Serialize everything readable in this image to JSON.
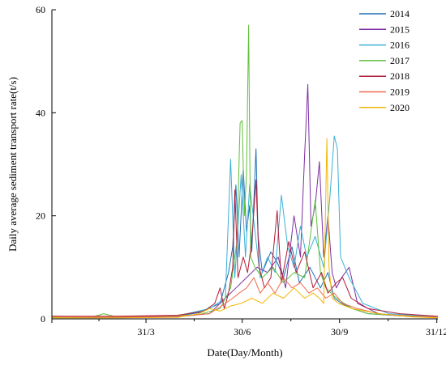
{
  "chart_data": {
    "type": "line",
    "xlabel": "Date(Day/Month)",
    "ylabel": "Daily average sediment transport rate(t/s)",
    "ylim": [
      0,
      60
    ],
    "xlim": [
      1,
      366
    ],
    "x_unit": "day of year",
    "y_ticks": [
      {
        "value": 0,
        "label": "0"
      },
      {
        "value": 20,
        "label": "20"
      },
      {
        "value": 40,
        "label": "40"
      },
      {
        "value": 60,
        "label": "60"
      }
    ],
    "x_ticks": [
      {
        "value": 90,
        "label": "31/3"
      },
      {
        "value": 181,
        "label": "30/6"
      },
      {
        "value": 273,
        "label": "30/9"
      },
      {
        "value": 365,
        "label": "31/12"
      }
    ],
    "legend_position": "top-right",
    "grid": false,
    "series": [
      {
        "name": "2014",
        "color": "#1f6fb5",
        "points": [
          [
            1,
            0.4
          ],
          [
            60,
            0.3
          ],
          [
            120,
            0.6
          ],
          [
            140,
            1.2
          ],
          [
            160,
            3
          ],
          [
            168,
            9
          ],
          [
            172,
            14
          ],
          [
            175,
            26
          ],
          [
            178,
            12
          ],
          [
            182,
            29
          ],
          [
            185,
            17
          ],
          [
            188,
            22
          ],
          [
            190,
            13
          ],
          [
            194,
            33
          ],
          [
            196,
            16
          ],
          [
            200,
            9
          ],
          [
            208,
            13
          ],
          [
            214,
            11
          ],
          [
            220,
            8
          ],
          [
            228,
            14
          ],
          [
            235,
            7
          ],
          [
            245,
            10
          ],
          [
            255,
            6
          ],
          [
            262,
            9
          ],
          [
            268,
            4
          ],
          [
            275,
            3
          ],
          [
            285,
            2
          ],
          [
            300,
            1
          ],
          [
            330,
            0.6
          ],
          [
            366,
            0.4
          ]
        ]
      },
      {
        "name": "2015",
        "color": "#7e2fa3",
        "points": [
          [
            1,
            0.3
          ],
          [
            60,
            0.3
          ],
          [
            120,
            0.4
          ],
          [
            150,
            1
          ],
          [
            165,
            4
          ],
          [
            175,
            6
          ],
          [
            185,
            8
          ],
          [
            195,
            10
          ],
          [
            205,
            9
          ],
          [
            215,
            12
          ],
          [
            222,
            6
          ],
          [
            230,
            20
          ],
          [
            236,
            12
          ],
          [
            240,
            32
          ],
          [
            243,
            45.5
          ],
          [
            246,
            18
          ],
          [
            250,
            22
          ],
          [
            254,
            30.5
          ],
          [
            258,
            12
          ],
          [
            262,
            20
          ],
          [
            266,
            9
          ],
          [
            270,
            6
          ],
          [
            275,
            8
          ],
          [
            282,
            10
          ],
          [
            290,
            3
          ],
          [
            310,
            1
          ],
          [
            330,
            0.6
          ],
          [
            366,
            0.4
          ]
        ]
      },
      {
        "name": "2016",
        "color": "#3ab0d6",
        "points": [
          [
            1,
            0.5
          ],
          [
            60,
            0.4
          ],
          [
            120,
            0.6
          ],
          [
            150,
            2
          ],
          [
            165,
            4
          ],
          [
            170,
            31
          ],
          [
            174,
            8
          ],
          [
            180,
            28
          ],
          [
            184,
            12
          ],
          [
            188,
            26
          ],
          [
            193,
            17
          ],
          [
            198,
            8
          ],
          [
            205,
            12
          ],
          [
            212,
            9
          ],
          [
            218,
            24
          ],
          [
            224,
            14
          ],
          [
            230,
            10
          ],
          [
            236,
            18
          ],
          [
            242,
            12
          ],
          [
            250,
            16
          ],
          [
            258,
            10
          ],
          [
            264,
            24
          ],
          [
            268,
            35.5
          ],
          [
            271,
            33
          ],
          [
            274,
            12
          ],
          [
            282,
            8
          ],
          [
            295,
            3
          ],
          [
            320,
            1
          ],
          [
            366,
            0.4
          ]
        ]
      },
      {
        "name": "2017",
        "color": "#5fbf3a",
        "points": [
          [
            1,
            0.3
          ],
          [
            40,
            0.4
          ],
          [
            50,
            1
          ],
          [
            60,
            0.5
          ],
          [
            100,
            0.5
          ],
          [
            140,
            0.8
          ],
          [
            160,
            2
          ],
          [
            170,
            6
          ],
          [
            176,
            15
          ],
          [
            179,
            38
          ],
          [
            181,
            38.5
          ],
          [
            183,
            20
          ],
          [
            185,
            28
          ],
          [
            187,
            57
          ],
          [
            189,
            12
          ],
          [
            193,
            10
          ],
          [
            200,
            8
          ],
          [
            210,
            10
          ],
          [
            220,
            7
          ],
          [
            230,
            9
          ],
          [
            240,
            8
          ],
          [
            250,
            23
          ],
          [
            255,
            9
          ],
          [
            260,
            6
          ],
          [
            270,
            4
          ],
          [
            285,
            2
          ],
          [
            300,
            1
          ],
          [
            366,
            0.3
          ]
        ]
      },
      {
        "name": "2018",
        "color": "#b01c38",
        "points": [
          [
            1,
            0.5
          ],
          [
            60,
            0.5
          ],
          [
            120,
            0.7
          ],
          [
            145,
            1.5
          ],
          [
            155,
            3
          ],
          [
            160,
            6
          ],
          [
            164,
            2
          ],
          [
            168,
            5
          ],
          [
            172,
            10
          ],
          [
            174,
            25
          ],
          [
            177,
            8
          ],
          [
            182,
            12
          ],
          [
            186,
            9
          ],
          [
            190,
            15
          ],
          [
            194,
            27
          ],
          [
            197,
            10
          ],
          [
            202,
            6
          ],
          [
            208,
            8
          ],
          [
            214,
            21
          ],
          [
            218,
            7
          ],
          [
            225,
            15
          ],
          [
            232,
            9
          ],
          [
            240,
            13
          ],
          [
            248,
            6
          ],
          [
            256,
            9
          ],
          [
            262,
            5
          ],
          [
            270,
            7
          ],
          [
            276,
            8
          ],
          [
            284,
            4
          ],
          [
            300,
            2
          ],
          [
            330,
            1
          ],
          [
            366,
            0.5
          ]
        ]
      },
      {
        "name": "2019",
        "color": "#f26c4f",
        "points": [
          [
            1,
            0.4
          ],
          [
            60,
            0.4
          ],
          [
            120,
            0.5
          ],
          [
            150,
            1
          ],
          [
            165,
            3
          ],
          [
            172,
            4
          ],
          [
            178,
            5
          ],
          [
            185,
            6
          ],
          [
            192,
            8
          ],
          [
            198,
            5
          ],
          [
            205,
            7
          ],
          [
            212,
            5
          ],
          [
            220,
            8
          ],
          [
            228,
            6
          ],
          [
            236,
            7
          ],
          [
            244,
            5
          ],
          [
            252,
            6
          ],
          [
            260,
            4
          ],
          [
            268,
            5
          ],
          [
            276,
            3
          ],
          [
            290,
            2
          ],
          [
            310,
            1
          ],
          [
            340,
            0.5
          ],
          [
            366,
            0.4
          ]
        ]
      },
      {
        "name": "2020",
        "color": "#f2b705",
        "points": [
          [
            1,
            0.2
          ],
          [
            60,
            0.2
          ],
          [
            120,
            0.3
          ],
          [
            140,
            1
          ],
          [
            150,
            2
          ],
          [
            160,
            1.5
          ],
          [
            170,
            2.5
          ],
          [
            180,
            3
          ],
          [
            190,
            4
          ],
          [
            200,
            3
          ],
          [
            210,
            5
          ],
          [
            220,
            4
          ],
          [
            230,
            6
          ],
          [
            240,
            4
          ],
          [
            248,
            5
          ],
          [
            254,
            4
          ],
          [
            258,
            3
          ],
          [
            261,
            35
          ],
          [
            263,
            10
          ],
          [
            266,
            4
          ],
          [
            272,
            3
          ],
          [
            285,
            2
          ],
          [
            310,
            1
          ],
          [
            340,
            0.4
          ],
          [
            366,
            0.2
          ]
        ]
      }
    ]
  }
}
